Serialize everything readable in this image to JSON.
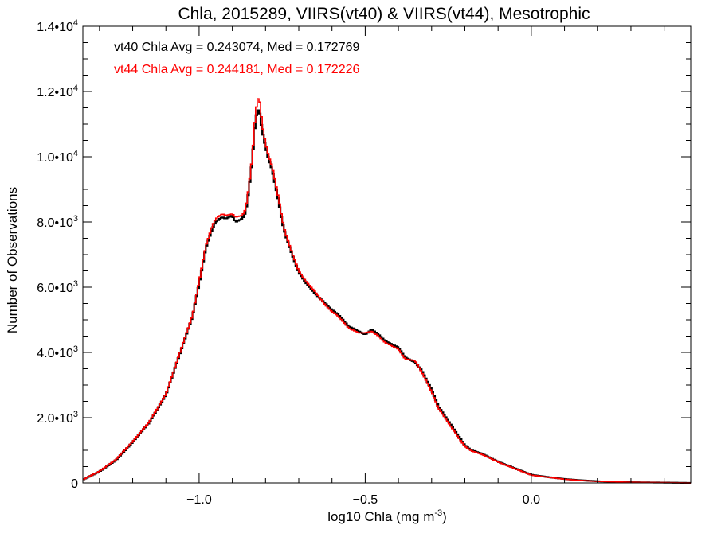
{
  "chart_data": {
    "type": "line",
    "title": "Chla, 2015289, VIIRS(vt40) & VIIRS(vt44), Mesotrophic",
    "xlabel": "log10 Chla (mg m",
    "xlabel_sup": "-3",
    "xlabel_tail": ")",
    "ylabel": "Number of Observations",
    "xlim": [
      -1.35,
      0.48
    ],
    "ylim": [
      0,
      14000
    ],
    "x_ticks": [
      {
        "value": -1.0,
        "label": "−1.0"
      },
      {
        "value": -0.5,
        "label": "−0.5"
      },
      {
        "value": 0.0,
        "label": "0.0"
      }
    ],
    "y_ticks": [
      {
        "value": 0,
        "mant": "0",
        "exp": ""
      },
      {
        "value": 2000,
        "mant": "2.0•10",
        "exp": "3"
      },
      {
        "value": 4000,
        "mant": "4.0•10",
        "exp": "3"
      },
      {
        "value": 6000,
        "mant": "6.0•10",
        "exp": "3"
      },
      {
        "value": 8000,
        "mant": "8.0•10",
        "exp": "3"
      },
      {
        "value": 10000,
        "mant": "1.0•10",
        "exp": "4"
      },
      {
        "value": 12000,
        "mant": "1.2•10",
        "exp": "4"
      },
      {
        "value": 14000,
        "mant": "1.4•10",
        "exp": "4"
      }
    ],
    "annotations": [
      "vt40 Chla Avg = 0.243074, Med = 0.172769",
      "vt44 Chla Avg = 0.244181, Med = 0.172226"
    ],
    "series": [
      {
        "name": "vt40",
        "color": "#000000",
        "x": [
          -1.35,
          -1.3,
          -1.25,
          -1.2,
          -1.15,
          -1.1,
          -1.05,
          -1.02,
          -1.0,
          -0.98,
          -0.96,
          -0.95,
          -0.93,
          -0.92,
          -0.9,
          -0.89,
          -0.87,
          -0.86,
          -0.85,
          -0.84,
          -0.83,
          -0.82,
          -0.81,
          -0.8,
          -0.79,
          -0.78,
          -0.77,
          -0.76,
          -0.75,
          -0.74,
          -0.72,
          -0.7,
          -0.68,
          -0.65,
          -0.62,
          -0.6,
          -0.58,
          -0.55,
          -0.52,
          -0.5,
          -0.48,
          -0.46,
          -0.44,
          -0.42,
          -0.4,
          -0.38,
          -0.35,
          -0.33,
          -0.3,
          -0.28,
          -0.25,
          -0.22,
          -0.2,
          -0.18,
          -0.15,
          -0.12,
          -0.1,
          -0.05,
          0.0,
          0.05,
          0.1,
          0.15,
          0.2,
          0.3,
          0.4,
          0.48
        ],
        "y": [
          100,
          350,
          700,
          1250,
          1850,
          2700,
          4200,
          5100,
          6100,
          7200,
          7800,
          8000,
          8150,
          8100,
          8200,
          8000,
          8100,
          8300,
          9000,
          9900,
          11200,
          11500,
          10800,
          10300,
          9900,
          9600,
          9100,
          8600,
          8000,
          7600,
          7000,
          6450,
          6150,
          5800,
          5500,
          5300,
          5150,
          4800,
          4650,
          4550,
          4700,
          4550,
          4350,
          4250,
          4150,
          3850,
          3700,
          3450,
          2850,
          2350,
          1900,
          1450,
          1150,
          1000,
          900,
          750,
          650,
          450,
          250,
          180,
          120,
          80,
          50,
          20,
          10,
          0
        ]
      },
      {
        "name": "vt44",
        "color": "#ff0000",
        "x": [
          -1.35,
          -1.3,
          -1.25,
          -1.2,
          -1.15,
          -1.1,
          -1.05,
          -1.02,
          -1.0,
          -0.98,
          -0.96,
          -0.95,
          -0.93,
          -0.92,
          -0.9,
          -0.89,
          -0.87,
          -0.86,
          -0.85,
          -0.84,
          -0.83,
          -0.82,
          -0.81,
          -0.8,
          -0.79,
          -0.78,
          -0.77,
          -0.76,
          -0.75,
          -0.74,
          -0.72,
          -0.7,
          -0.68,
          -0.65,
          -0.62,
          -0.6,
          -0.58,
          -0.55,
          -0.52,
          -0.5,
          -0.48,
          -0.46,
          -0.44,
          -0.42,
          -0.4,
          -0.38,
          -0.35,
          -0.33,
          -0.3,
          -0.28,
          -0.25,
          -0.22,
          -0.2,
          -0.18,
          -0.15,
          -0.12,
          -0.1,
          -0.05,
          0.0,
          0.05,
          0.1,
          0.15,
          0.2,
          0.3,
          0.4,
          0.48
        ],
        "y": [
          100,
          360,
          720,
          1270,
          1870,
          2720,
          4230,
          5130,
          6180,
          7250,
          7900,
          8100,
          8250,
          8200,
          8250,
          8150,
          8200,
          8400,
          9100,
          10000,
          11400,
          11900,
          11000,
          10400,
          10000,
          9700,
          9200,
          8700,
          8100,
          7650,
          7050,
          6500,
          6200,
          5850,
          5450,
          5250,
          5100,
          4750,
          4600,
          4600,
          4650,
          4500,
          4300,
          4200,
          4100,
          3800,
          3750,
          3400,
          2800,
          2300,
          1850,
          1400,
          1120,
          980,
          880,
          740,
          640,
          440,
          240,
          175,
          115,
          75,
          48,
          20,
          10,
          0
        ]
      }
    ]
  }
}
